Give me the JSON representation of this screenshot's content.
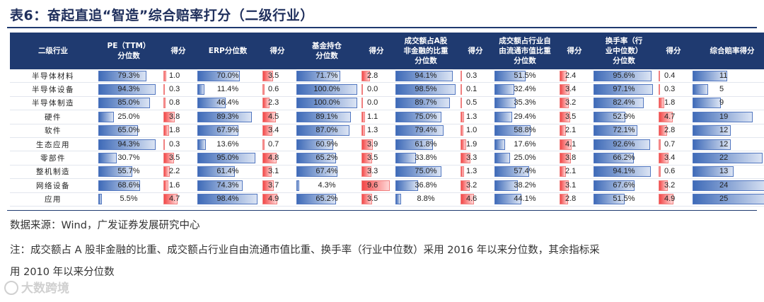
{
  "title": "表6：奋起直追“智造”综合赔率打分（二级行业）",
  "columns": [
    "二级行业",
    "PE（TTM）\n分位数",
    "得分",
    "ERP分位数",
    "得分",
    "基金持仓\n分位数",
    "得分",
    "成交额占A股\n非金融的比重\n分位数",
    "得分",
    "成交额占行业自\n由流通市值比重\n分位数",
    "得分",
    "换手率（行\n业中位数）\n分位数",
    "得分",
    "综合赔率得分"
  ],
  "colors": {
    "header_bg": "#1f3a70",
    "blue_bar": "#3f6bb8",
    "red_bar": "#f24848"
  },
  "chart_data": {
    "type": "table",
    "rows": [
      {
        "industry": "半导体材料",
        "pe": "79.3%",
        "pe_s": "1.0",
        "erp": "70.0%",
        "erp_s": "3.5",
        "fund": "71.7%",
        "fund_s": "2.8",
        "amt": "94.1%",
        "amt_s": "0.3",
        "free": "51.5%",
        "free_s": "2.4",
        "turn": "95.6%",
        "turn_s": "0.4",
        "total": "11"
      },
      {
        "industry": "半导体设备",
        "pe": "94.3%",
        "pe_s": "0.3",
        "erp": "11.4%",
        "erp_s": "0.6",
        "fund": "100.0%",
        "fund_s": "0.0",
        "amt": "98.5%",
        "amt_s": "0.1",
        "free": "32.4%",
        "free_s": "3.4",
        "turn": "97.1%",
        "turn_s": "0.3",
        "total": "5"
      },
      {
        "industry": "半导体制造",
        "pe": "85.0%",
        "pe_s": "0.8",
        "erp": "46.4%",
        "erp_s": "2.3",
        "fund": "100.0%",
        "fund_s": "0.0",
        "amt": "89.7%",
        "amt_s": "0.5",
        "free": "35.3%",
        "free_s": "3.2",
        "turn": "82.4%",
        "turn_s": "1.8",
        "total": "9"
      },
      {
        "industry": "硬件",
        "pe": "25.0%",
        "pe_s": "3.8",
        "erp": "89.3%",
        "erp_s": "4.5",
        "fund": "89.1%",
        "fund_s": "1.1",
        "amt": "75.0%",
        "amt_s": "1.3",
        "free": "29.4%",
        "free_s": "3.5",
        "turn": "52.9%",
        "turn_s": "4.7",
        "total": "19"
      },
      {
        "industry": "软件",
        "pe": "65.0%",
        "pe_s": "1.8",
        "erp": "67.9%",
        "erp_s": "3.4",
        "fund": "87.0%",
        "fund_s": "1.3",
        "amt": "79.4%",
        "amt_s": "1.0",
        "free": "58.8%",
        "free_s": "2.1",
        "turn": "72.1%",
        "turn_s": "2.8",
        "total": "12"
      },
      {
        "industry": "生态应用",
        "pe": "94.3%",
        "pe_s": "0.3",
        "erp": "13.6%",
        "erp_s": "0.7",
        "fund": "60.9%",
        "fund_s": "3.9",
        "amt": "61.8%",
        "amt_s": "1.9",
        "free": "17.6%",
        "free_s": "4.1",
        "turn": "92.6%",
        "turn_s": "0.7",
        "total": "12"
      },
      {
        "industry": "零部件",
        "pe": "30.7%",
        "pe_s": "3.5",
        "erp": "95.0%",
        "erp_s": "4.8",
        "fund": "65.2%",
        "fund_s": "3.5",
        "amt": "33.8%",
        "amt_s": "3.3",
        "free": "25.0%",
        "free_s": "3.8",
        "turn": "66.2%",
        "turn_s": "3.4",
        "total": "22"
      },
      {
        "industry": "整机制造",
        "pe": "55.7%",
        "pe_s": "2.2",
        "erp": "61.4%",
        "erp_s": "3.1",
        "fund": "67.4%",
        "fund_s": "3.3",
        "amt": "75.0%",
        "amt_s": "1.3",
        "free": "57.4%",
        "free_s": "2.1",
        "turn": "94.1%",
        "turn_s": "0.6",
        "total": "13"
      },
      {
        "industry": "网络设备",
        "pe": "68.6%",
        "pe_s": "1.6",
        "erp": "74.3%",
        "erp_s": "3.7",
        "fund": "4.3%",
        "fund_s": "9.6",
        "amt": "36.8%",
        "amt_s": "3.2",
        "free": "38.2%",
        "free_s": "3.1",
        "turn": "67.6%",
        "turn_s": "3.2",
        "total": "24"
      },
      {
        "industry": "应用",
        "pe": "5.5%",
        "pe_s": "4.7",
        "erp": "98.4%",
        "erp_s": "4.9",
        "fund": "65.2%",
        "fund_s": "3.5",
        "amt": "8.8%",
        "amt_s": "4.6",
        "free": "44.1%",
        "free_s": "2.8",
        "turn": "51.5%",
        "turn_s": "4.9",
        "total": "25"
      }
    ],
    "score_max": 10,
    "total_max": 25
  },
  "source": "数据来源：Wind，广发证券发展研究中心",
  "note_line1": "注：成交额占 A 股非金融的比重、成交额占行业自由流通市值比重、换手率（行业中位数）采用 2016 年以来分位数，其余指标采",
  "note_line2": "用 2010 年以来分位数",
  "watermark": "大数跨境"
}
